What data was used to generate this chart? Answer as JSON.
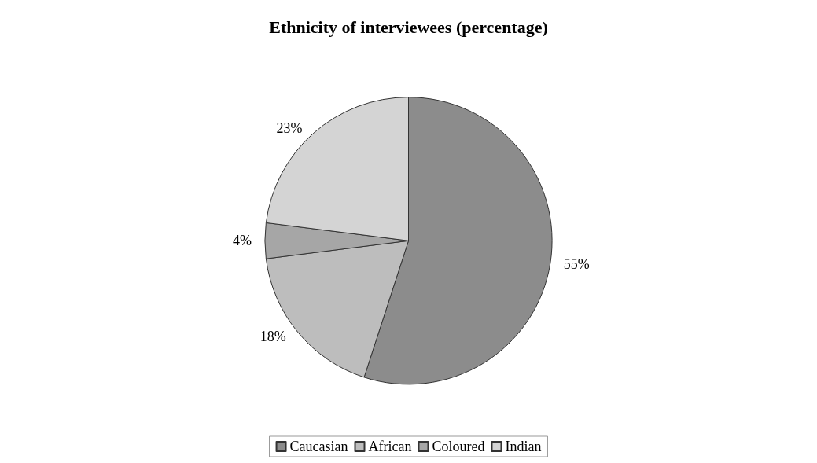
{
  "chart_data": {
    "type": "pie",
    "title": "Ethnicity of interviewees (percentage)",
    "categories": [
      "Caucasian",
      "African",
      "Coloured",
      "Indian"
    ],
    "values": [
      55,
      18,
      4,
      23
    ],
    "value_labels": [
      "55%",
      "18%",
      "4%",
      "23%"
    ],
    "colors": [
      "#8c8c8c",
      "#bdbdbd",
      "#a6a6a6",
      "#d4d4d4"
    ],
    "legend": "bottom"
  }
}
